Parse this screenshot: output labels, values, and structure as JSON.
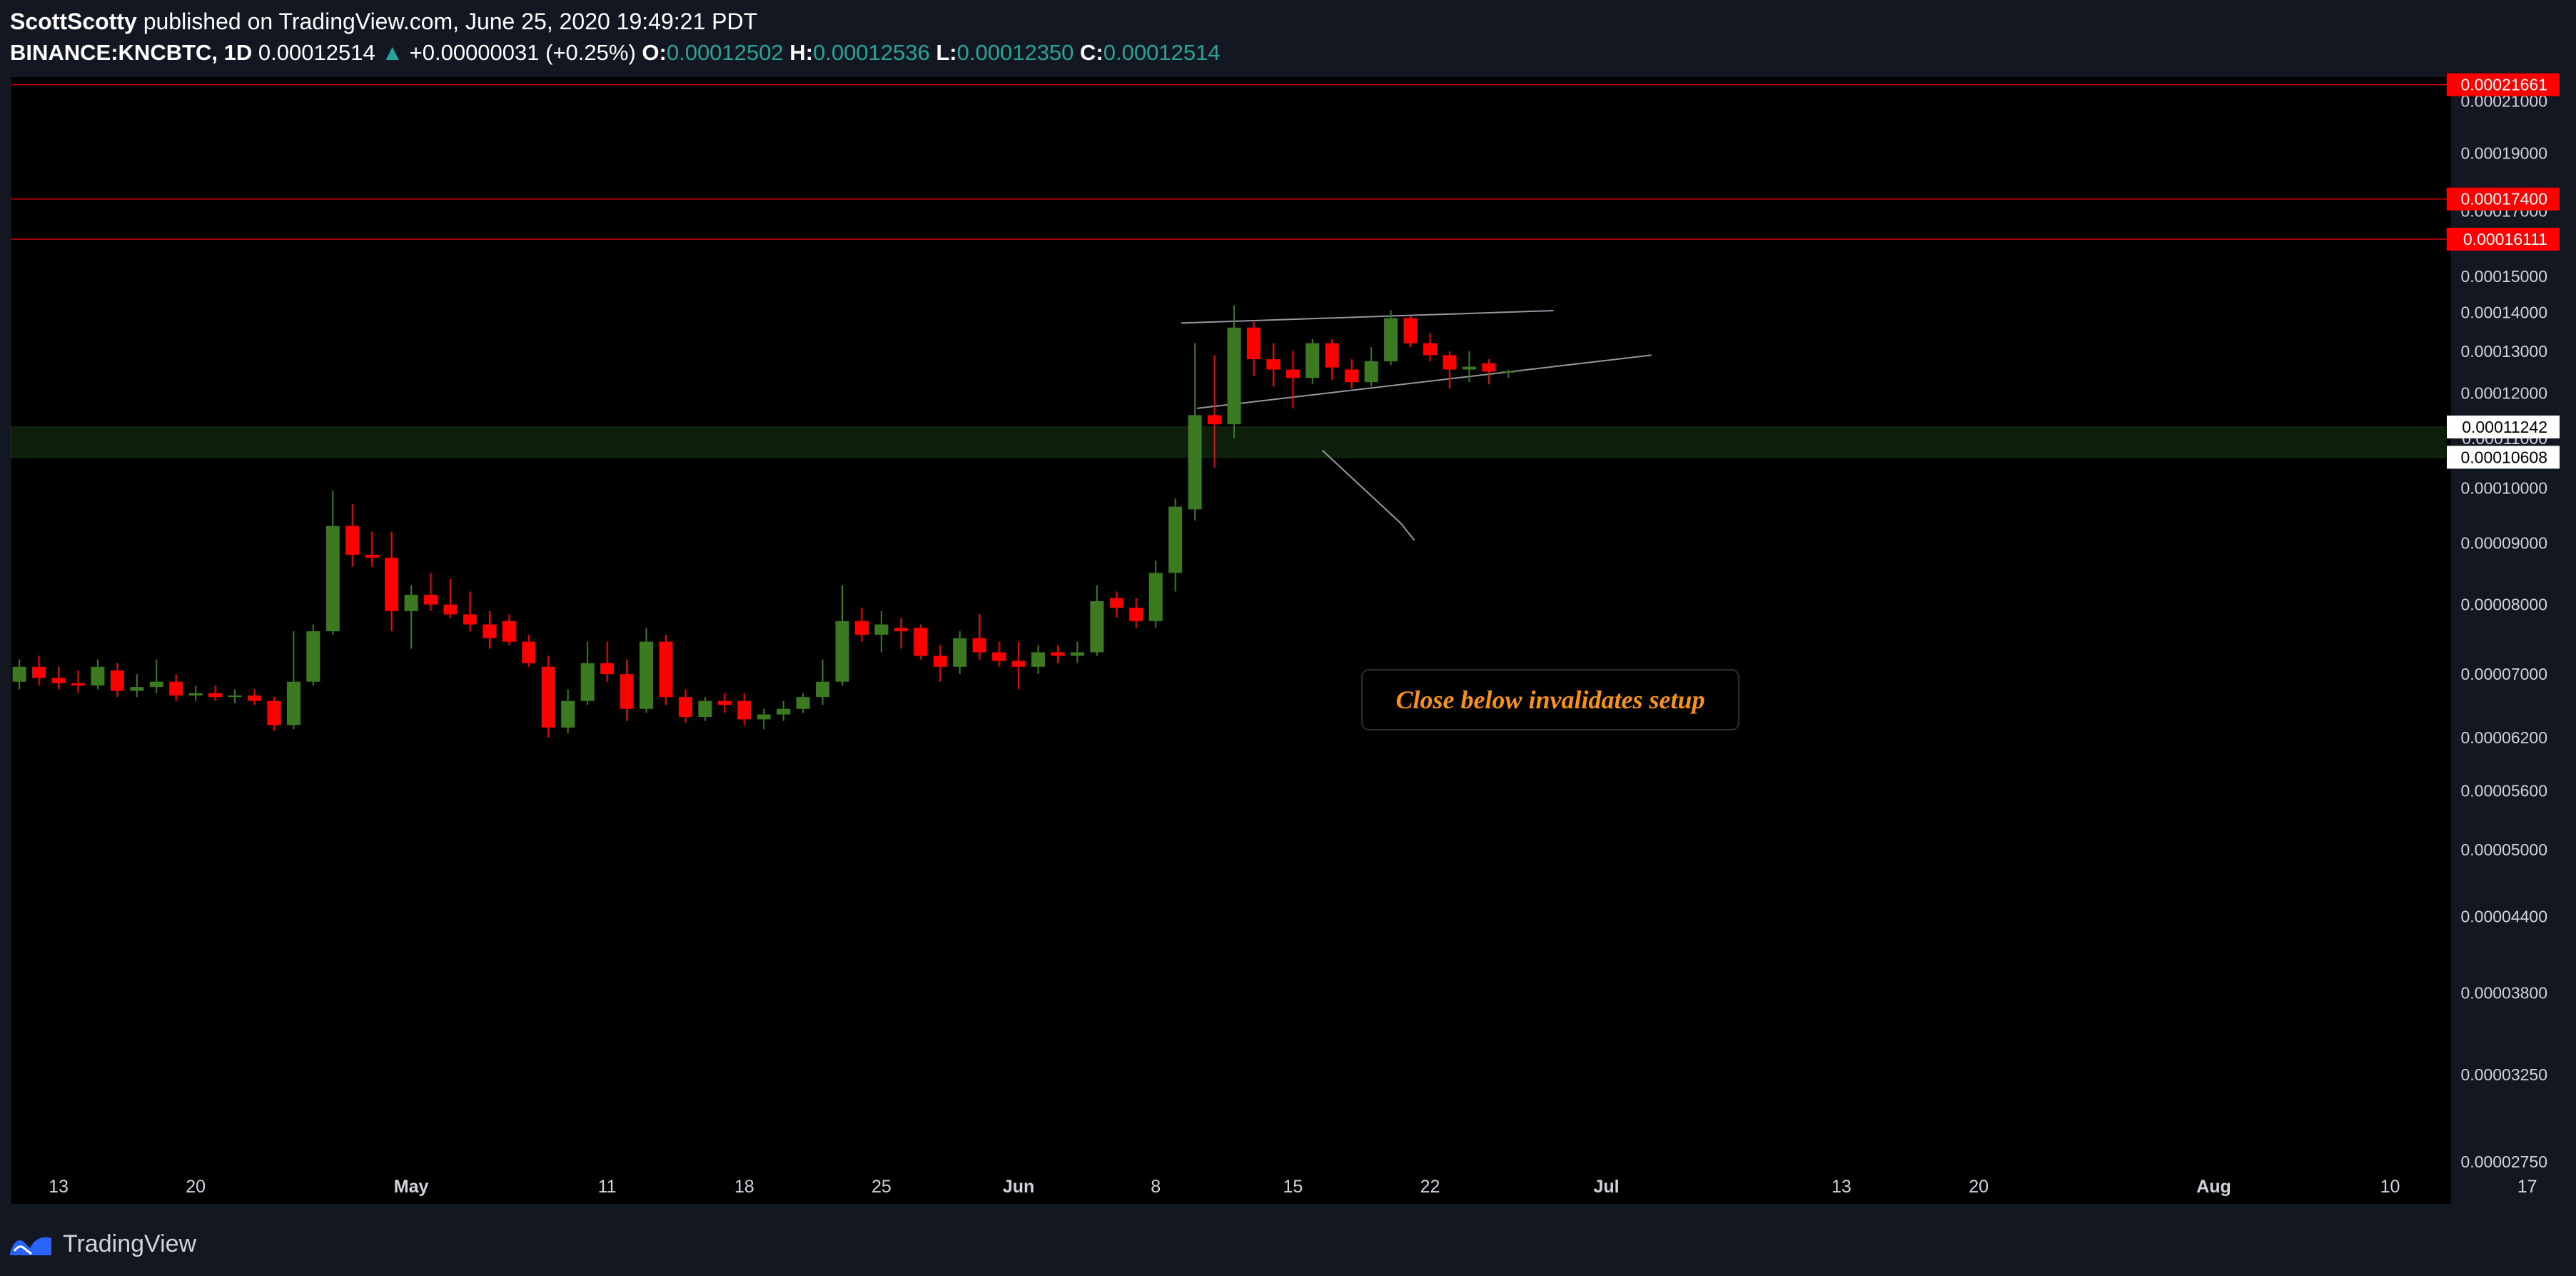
{
  "header": {
    "author": "ScottScotty",
    "published_text": "published on TradingView.com, June 25, 2020 19:49:21 PDT",
    "symbol": "BINANCE:KNCBTC, 1D",
    "last": "0.00012514",
    "change_arrow": "▲",
    "change": "+0.00000031 (+0.25%)",
    "o_label": "O:",
    "o_value": "0.00012502",
    "h_label": "H:",
    "h_value": "0.00012536",
    "l_label": "L:",
    "l_value": "0.00012350",
    "c_label": "C:",
    "c_value": "0.00012514"
  },
  "footer": {
    "brand": "TradingView",
    "logo_icon": "tradingview-logo-icon"
  },
  "colors": {
    "up": "#3c7a22",
    "down": "#ff0000",
    "accent": "#f7931a",
    "support_zone": "#0d1f0a"
  },
  "chart_data": {
    "type": "candlestick",
    "y_axis": {
      "scale": "log",
      "ticks": [
        "0.00021000",
        "0.00019000",
        "0.00017000",
        "0.00015000",
        "0.00014000",
        "0.00013000",
        "0.00012000",
        "0.00011000",
        "0.00010000",
        "0.00009000",
        "0.00008000",
        "0.00007000",
        "0.00006200",
        "0.00005600",
        "0.00005000",
        "0.00004400",
        "0.00003800",
        "0.00003250",
        "0.00002750"
      ],
      "range": [
        2.75e-05,
        0.0002168
      ]
    },
    "x_axis": {
      "ticks": [
        "13",
        "20",
        "May",
        "11",
        "18",
        "25",
        "Jun",
        "8",
        "15",
        "22",
        "Jul",
        "13",
        "20",
        "Aug",
        "10",
        "17"
      ],
      "tick_days": [
        0,
        7,
        18,
        28,
        35,
        42,
        49,
        56,
        63,
        70,
        79,
        91,
        98,
        110,
        119,
        126
      ]
    },
    "levels": [
      {
        "label": "0.00021661",
        "price": 0.00021661
      },
      {
        "label": "0.00017400",
        "price": 0.000174
      },
      {
        "label": "0.00016111",
        "price": 0.00016111
      }
    ],
    "zone": {
      "top_label": "0.00011242",
      "bottom_label": "0.00010608",
      "top": 0.00011242,
      "bottom": 0.00010608
    },
    "trendlines": [
      {
        "from": [
          57.3,
          0.0001372
        ],
        "to": [
          76.3,
          0.0001405
        ]
      },
      {
        "from": [
          58.1,
          0.0001165
        ],
        "to": [
          81.3,
          0.000129
        ]
      },
      {
        "from": [
          64.5,
          0.0001075
        ],
        "to": [
          68.5,
          9.35e-05
        ]
      },
      {
        "from": [
          68.5,
          9.35e-05
        ],
        "to": [
          69.2,
          9.05e-05
        ]
      }
    ],
    "annotation": "Close below invalidates setup",
    "candles": [
      {
        "d": -2,
        "o": 6.9e-05,
        "h": 7.2e-05,
        "l": 6.8e-05,
        "c": 7.1e-05
      },
      {
        "d": -1,
        "o": 7.1e-05,
        "h": 7.25e-05,
        "l": 6.85e-05,
        "c": 6.95e-05
      },
      {
        "d": 0,
        "o": 6.95e-05,
        "h": 7.1e-05,
        "l": 6.8e-05,
        "c": 6.88e-05
      },
      {
        "d": 1,
        "o": 6.88e-05,
        "h": 7.05e-05,
        "l": 6.75e-05,
        "c": 6.85e-05
      },
      {
        "d": 2,
        "o": 6.85e-05,
        "h": 7.2e-05,
        "l": 6.8e-05,
        "c": 7.1e-05
      },
      {
        "d": 3,
        "o": 7.05e-05,
        "h": 7.15e-05,
        "l": 6.7e-05,
        "c": 6.78e-05
      },
      {
        "d": 4,
        "o": 6.78e-05,
        "h": 7e-05,
        "l": 6.7e-05,
        "c": 6.83e-05
      },
      {
        "d": 5,
        "o": 6.83e-05,
        "h": 7.2e-05,
        "l": 6.75e-05,
        "c": 6.9e-05
      },
      {
        "d": 6,
        "o": 6.9e-05,
        "h": 7e-05,
        "l": 6.65e-05,
        "c": 6.72e-05
      },
      {
        "d": 7,
        "o": 6.72e-05,
        "h": 6.85e-05,
        "l": 6.65e-05,
        "c": 6.75e-05
      },
      {
        "d": 8,
        "o": 6.75e-05,
        "h": 6.85e-05,
        "l": 6.65e-05,
        "c": 6.7e-05
      },
      {
        "d": 9,
        "o": 6.7e-05,
        "h": 6.8e-05,
        "l": 6.62e-05,
        "c": 6.72e-05
      },
      {
        "d": 10,
        "o": 6.72e-05,
        "h": 6.8e-05,
        "l": 6.6e-05,
        "c": 6.65e-05
      },
      {
        "d": 11,
        "o": 6.65e-05,
        "h": 6.7e-05,
        "l": 6.28e-05,
        "c": 6.35e-05
      },
      {
        "d": 12,
        "o": 6.35e-05,
        "h": 7.6e-05,
        "l": 6.3e-05,
        "c": 6.9e-05
      },
      {
        "d": 13,
        "o": 6.9e-05,
        "h": 7.7e-05,
        "l": 6.85e-05,
        "c": 7.6e-05
      },
      {
        "d": 14,
        "o": 7.6e-05,
        "h": 9.95e-05,
        "l": 7.55e-05,
        "c": 9.3e-05
      },
      {
        "d": 15,
        "o": 9.3e-05,
        "h": 9.7e-05,
        "l": 8.6e-05,
        "c": 8.8e-05
      },
      {
        "d": 16,
        "o": 8.8e-05,
        "h": 9.2e-05,
        "l": 8.6e-05,
        "c": 8.75e-05
      },
      {
        "d": 17,
        "o": 8.75e-05,
        "h": 9.2e-05,
        "l": 7.6e-05,
        "c": 7.9e-05
      },
      {
        "d": 18,
        "o": 7.9e-05,
        "h": 8.3e-05,
        "l": 7.35e-05,
        "c": 8.15e-05
      },
      {
        "d": 19,
        "o": 8.15e-05,
        "h": 8.5e-05,
        "l": 7.9e-05,
        "c": 8e-05
      },
      {
        "d": 20,
        "o": 8e-05,
        "h": 8.4e-05,
        "l": 7.8e-05,
        "c": 7.85e-05
      },
      {
        "d": 21,
        "o": 7.85e-05,
        "h": 8.2e-05,
        "l": 7.6e-05,
        "c": 7.7e-05
      },
      {
        "d": 22,
        "o": 7.7e-05,
        "h": 7.9e-05,
        "l": 7.35e-05,
        "c": 7.5e-05
      },
      {
        "d": 23,
        "o": 7.75e-05,
        "h": 7.85e-05,
        "l": 7.4e-05,
        "c": 7.45e-05
      },
      {
        "d": 24,
        "o": 7.45e-05,
        "h": 7.55e-05,
        "l": 7.1e-05,
        "c": 7.15e-05
      },
      {
        "d": 25,
        "o": 7.1e-05,
        "h": 7.25e-05,
        "l": 6.2e-05,
        "c": 6.32e-05
      },
      {
        "d": 26,
        "o": 6.32e-05,
        "h": 6.8e-05,
        "l": 6.25e-05,
        "c": 6.65e-05
      },
      {
        "d": 27,
        "o": 6.65e-05,
        "h": 7.45e-05,
        "l": 6.6e-05,
        "c": 7.15e-05
      },
      {
        "d": 28,
        "o": 7.15e-05,
        "h": 7.45e-05,
        "l": 6.9e-05,
        "c": 7e-05
      },
      {
        "d": 29,
        "o": 7e-05,
        "h": 7.2e-05,
        "l": 6.4e-05,
        "c": 6.55e-05
      },
      {
        "d": 30,
        "o": 6.55e-05,
        "h": 7.65e-05,
        "l": 6.5e-05,
        "c": 7.45e-05
      },
      {
        "d": 31,
        "o": 7.45e-05,
        "h": 7.55e-05,
        "l": 6.6e-05,
        "c": 6.7e-05
      },
      {
        "d": 32,
        "o": 6.7e-05,
        "h": 6.8e-05,
        "l": 6.38e-05,
        "c": 6.45e-05
      },
      {
        "d": 33,
        "o": 6.45e-05,
        "h": 6.7e-05,
        "l": 6.4e-05,
        "c": 6.65e-05
      },
      {
        "d": 34,
        "o": 6.65e-05,
        "h": 6.75e-05,
        "l": 6.5e-05,
        "c": 6.6e-05
      },
      {
        "d": 35,
        "o": 6.65e-05,
        "h": 6.75e-05,
        "l": 6.35e-05,
        "c": 6.42e-05
      },
      {
        "d": 36,
        "o": 6.42e-05,
        "h": 6.55e-05,
        "l": 6.3e-05,
        "c": 6.48e-05
      },
      {
        "d": 37,
        "o": 6.48e-05,
        "h": 6.65e-05,
        "l": 6.4e-05,
        "c": 6.55e-05
      },
      {
        "d": 38,
        "o": 6.55e-05,
        "h": 6.75e-05,
        "l": 6.5e-05,
        "c": 6.7e-05
      },
      {
        "d": 39,
        "o": 6.7e-05,
        "h": 7.2e-05,
        "l": 6.6e-05,
        "c": 6.9e-05
      },
      {
        "d": 40,
        "o": 6.9e-05,
        "h": 8.3e-05,
        "l": 6.85e-05,
        "c": 7.75e-05
      },
      {
        "d": 41,
        "o": 7.75e-05,
        "h": 7.95e-05,
        "l": 7.45e-05,
        "c": 7.55e-05
      },
      {
        "d": 42,
        "o": 7.55e-05,
        "h": 7.9e-05,
        "l": 7.3e-05,
        "c": 7.7e-05
      },
      {
        "d": 43,
        "o": 7.65e-05,
        "h": 7.8e-05,
        "l": 7.35e-05,
        "c": 7.6e-05
      },
      {
        "d": 44,
        "o": 7.65e-05,
        "h": 7.7e-05,
        "l": 7.2e-05,
        "c": 7.25e-05
      },
      {
        "d": 45,
        "o": 7.25e-05,
        "h": 7.4e-05,
        "l": 6.9e-05,
        "c": 7.1e-05
      },
      {
        "d": 46,
        "o": 7.1e-05,
        "h": 7.6e-05,
        "l": 7e-05,
        "c": 7.5e-05
      },
      {
        "d": 47,
        "o": 7.5e-05,
        "h": 7.85e-05,
        "l": 7.2e-05,
        "c": 7.3e-05
      },
      {
        "d": 48,
        "o": 7.3e-05,
        "h": 7.45e-05,
        "l": 7.1e-05,
        "c": 7.18e-05
      },
      {
        "d": 49,
        "o": 7.18e-05,
        "h": 7.45e-05,
        "l": 6.8e-05,
        "c": 7.1e-05
      },
      {
        "d": 50,
        "o": 7.1e-05,
        "h": 7.4e-05,
        "l": 7e-05,
        "c": 7.3e-05
      },
      {
        "d": 51,
        "o": 7.3e-05,
        "h": 7.4e-05,
        "l": 7.15e-05,
        "c": 7.25e-05
      },
      {
        "d": 52,
        "o": 7.25e-05,
        "h": 7.45e-05,
        "l": 7.15e-05,
        "c": 7.3e-05
      },
      {
        "d": 53,
        "o": 7.3e-05,
        "h": 8.3e-05,
        "l": 7.25e-05,
        "c": 8.05e-05
      },
      {
        "d": 54,
        "o": 8.1e-05,
        "h": 8.2e-05,
        "l": 7.8e-05,
        "c": 7.95e-05
      },
      {
        "d": 55,
        "o": 7.95e-05,
        "h": 8.1e-05,
        "l": 7.65e-05,
        "c": 7.75e-05
      },
      {
        "d": 56,
        "o": 7.75e-05,
        "h": 8.7e-05,
        "l": 7.65e-05,
        "c": 8.5e-05
      },
      {
        "d": 57,
        "o": 8.5e-05,
        "h": 9.8e-05,
        "l": 8.2e-05,
        "c": 9.65e-05
      },
      {
        "d": 58,
        "o": 9.6e-05,
        "h": 0.000132,
        "l": 9.4e-05,
        "c": 0.000115
      },
      {
        "d": 59,
        "o": 0.000115,
        "h": 0.000129,
        "l": 0.000104,
        "c": 0.000113
      },
      {
        "d": 60,
        "o": 0.000113,
        "h": 0.000142,
        "l": 0.00011,
        "c": 0.000136
      },
      {
        "d": 61,
        "o": 0.000136,
        "h": 0.0001375,
        "l": 0.000124,
        "c": 0.000128
      },
      {
        "d": 62,
        "o": 0.000128,
        "h": 0.000132,
        "l": 0.0001215,
        "c": 0.0001255
      },
      {
        "d": 63,
        "o": 0.0001255,
        "h": 0.00013,
        "l": 0.0001165,
        "c": 0.0001235
      },
      {
        "d": 64,
        "o": 0.0001235,
        "h": 0.000133,
        "l": 0.000122,
        "c": 0.000132
      },
      {
        "d": 65,
        "o": 0.000132,
        "h": 0.000133,
        "l": 0.000123,
        "c": 0.000126
      },
      {
        "d": 66,
        "o": 0.0001255,
        "h": 0.000128,
        "l": 0.000121,
        "c": 0.0001225
      },
      {
        "d": 67,
        "o": 0.0001225,
        "h": 0.000131,
        "l": 0.0001215,
        "c": 0.0001275
      },
      {
        "d": 68,
        "o": 0.0001275,
        "h": 0.0001405,
        "l": 0.0001265,
        "c": 0.0001385
      },
      {
        "d": 69,
        "o": 0.0001385,
        "h": 0.000139,
        "l": 0.000131,
        "c": 0.000132
      },
      {
        "d": 70,
        "o": 0.000132,
        "h": 0.0001345,
        "l": 0.0001275,
        "c": 0.000129
      },
      {
        "d": 71,
        "o": 0.000129,
        "h": 0.00013,
        "l": 0.000121,
        "c": 0.0001255
      },
      {
        "d": 72,
        "o": 0.0001255,
        "h": 0.00013,
        "l": 0.0001225,
        "c": 0.0001262
      },
      {
        "d": 73,
        "o": 0.000127,
        "h": 0.000128,
        "l": 0.000122,
        "c": 0.000125
      },
      {
        "d": 74,
        "o": 0.000125,
        "h": 0.0001254,
        "l": 0.0001235,
        "c": 0.0001251
      }
    ]
  }
}
